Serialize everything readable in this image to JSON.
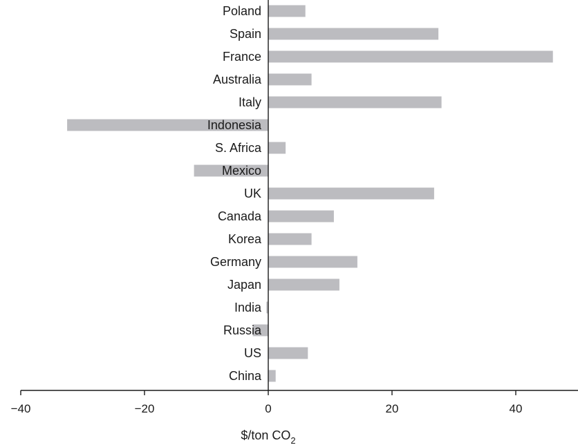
{
  "chart_data": {
    "type": "bar",
    "orientation": "horizontal",
    "title": "",
    "categories": [
      "Poland",
      "Spain",
      "France",
      "Australia",
      "Italy",
      "Indonesia",
      "S. Africa",
      "Mexico",
      "UK",
      "Canada",
      "Korea",
      "Germany",
      "Japan",
      "India",
      "Russia",
      "US",
      "China"
    ],
    "values": [
      6,
      27.5,
      46,
      7,
      28,
      -32.5,
      2.8,
      -12,
      26.8,
      10.6,
      7,
      14.4,
      11.5,
      -0.3,
      -2.5,
      6.4,
      1.2
    ],
    "xlabel_main": "$/ton CO",
    "xlabel_sub": "2",
    "xlim": [
      -40,
      50
    ],
    "xticks": [
      -40,
      -20,
      0,
      20,
      40
    ],
    "xtick_labels": [
      "−40",
      "−20",
      "0",
      "20",
      "40"
    ],
    "grid": false,
    "bar_color": "#bcbcc0"
  }
}
